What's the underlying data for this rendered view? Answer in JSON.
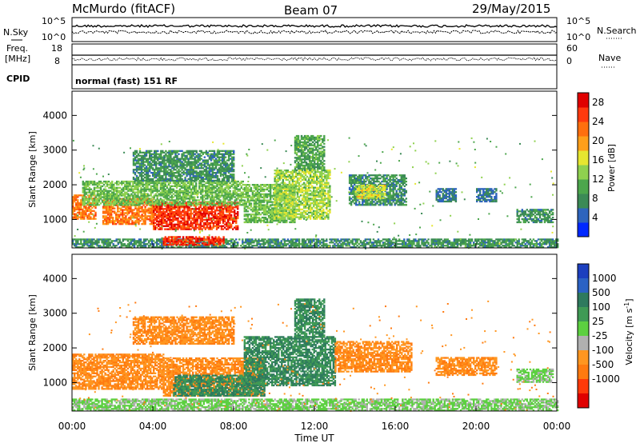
{
  "header": {
    "station": "McMurdo (fitACF)",
    "beam": "Beam 07",
    "date": "29/May/2015",
    "cpid_text": "normal (fast) 151 RF"
  },
  "top_panel": {
    "left_labels": {
      "nsky": "N.Sky",
      "freq_line1": "Freq.",
      "freq_line2": "[MHz]",
      "cpid": "CPID"
    },
    "right_labels": {
      "nsearch": "N.Search",
      "nave": "Nave"
    },
    "nsky_ticks": [
      "10^5",
      "10^0"
    ],
    "nsearch_ticks": [
      "10^5",
      "10^0"
    ],
    "freq_ticks": [
      "18",
      "8"
    ],
    "nave_ticks": [
      "60",
      "0"
    ]
  },
  "colors": {
    "power_scale": [
      "#0028ff",
      "#2e64bd",
      "#3b8a56",
      "#4ca64c",
      "#8fd14f",
      "#e6e630",
      "#ff9f1a",
      "#ff6f0f",
      "#ff3a0f",
      "#e00000"
    ],
    "velocity_scale": [
      "#1c3fbf",
      "#2b62c4",
      "#2e7a5e",
      "#3f9a55",
      "#5cd040",
      "#b0b0b0",
      "#ff9620",
      "#ff7a10",
      "#ff3a0a",
      "#e00000"
    ]
  },
  "chart_data": [
    {
      "type": "heatmap",
      "panel": "power",
      "xlabel": "Time UT",
      "ylabel": "Slant Range [km]",
      "x_ticks": [
        "00:00",
        "04:00",
        "08:00",
        "12:00",
        "16:00",
        "20:00",
        "00:00"
      ],
      "y_ticks": [
        1000,
        2000,
        3000,
        4000
      ],
      "x_range_hours": [
        0,
        24
      ],
      "y_range_km": [
        180,
        4700
      ],
      "colorbar": {
        "label": "Power [dB]",
        "ticks": [
          4,
          8,
          12,
          16,
          20,
          24,
          28
        ],
        "range": [
          0,
          30
        ]
      },
      "regions": [
        {
          "t0": 0.0,
          "t1": 1.2,
          "r0": 1000,
          "r1": 1700,
          "value": 22
        },
        {
          "t0": 1.5,
          "t1": 4.0,
          "r0": 850,
          "r1": 1600,
          "value": 22
        },
        {
          "t0": 4.0,
          "t1": 8.2,
          "r0": 700,
          "r1": 1500,
          "value": 26
        },
        {
          "t0": 0.5,
          "t1": 8.5,
          "r0": 1400,
          "r1": 2100,
          "value": 12
        },
        {
          "t0": 3.0,
          "t1": 8.0,
          "r0": 2100,
          "r1": 3000,
          "value": 8
        },
        {
          "t0": 8.5,
          "t1": 11.0,
          "r0": 900,
          "r1": 2000,
          "value": 12
        },
        {
          "t0": 10.0,
          "t1": 12.8,
          "r0": 1000,
          "r1": 2400,
          "value": 14
        },
        {
          "t0": 11.0,
          "t1": 12.5,
          "r0": 2400,
          "r1": 3400,
          "value": 10
        },
        {
          "t0": 13.7,
          "t1": 16.5,
          "r0": 1400,
          "r1": 2300,
          "value": 8
        },
        {
          "t0": 14.0,
          "t1": 15.5,
          "r0": 1600,
          "r1": 2000,
          "value": 16
        },
        {
          "t0": 18.0,
          "t1": 19.0,
          "r0": 1500,
          "r1": 1900,
          "value": 6
        },
        {
          "t0": 20.0,
          "t1": 21.0,
          "r0": 1500,
          "r1": 1900,
          "value": 6
        },
        {
          "t0": 22.0,
          "t1": 23.8,
          "r0": 900,
          "r1": 1300,
          "value": 8
        },
        {
          "t0": 0.0,
          "t1": 24.0,
          "r0": 180,
          "r1": 450,
          "value": 8
        },
        {
          "t0": 4.5,
          "t1": 7.5,
          "r0": 250,
          "r1": 500,
          "value": 26
        }
      ]
    },
    {
      "type": "heatmap",
      "panel": "velocity",
      "xlabel": "Time UT",
      "ylabel": "Slant Range [km]",
      "x_ticks": [
        "00:00",
        "04:00",
        "08:00",
        "12:00",
        "16:00",
        "20:00",
        "00:00"
      ],
      "y_ticks": [
        1000,
        2000,
        3000,
        4000
      ],
      "x_range_hours": [
        0,
        24
      ],
      "y_range_km": [
        180,
        4700
      ],
      "colorbar": {
        "label": "Velocity [m s",
        "label_sup": "-1",
        "label_end": "]",
        "ticks": [
          "1000",
          "500",
          "100",
          "25",
          "-25",
          "-100",
          "-500",
          "-1000"
        ]
      },
      "regions": [
        {
          "t0": 0.0,
          "t1": 4.5,
          "r0": 800,
          "r1": 1800,
          "value": -100
        },
        {
          "t0": 4.5,
          "t1": 9.5,
          "r0": 600,
          "r1": 1700,
          "value": -100
        },
        {
          "t0": 5.0,
          "t1": 9.5,
          "r0": 600,
          "r1": 1200,
          "value": 100
        },
        {
          "t0": 8.5,
          "t1": 13.0,
          "r0": 900,
          "r1": 2300,
          "value": 100
        },
        {
          "t0": 11.0,
          "t1": 12.5,
          "r0": 2300,
          "r1": 3400,
          "value": 100
        },
        {
          "t0": 13.0,
          "t1": 16.8,
          "r0": 1300,
          "r1": 2200,
          "value": -100
        },
        {
          "t0": 3.0,
          "t1": 8.0,
          "r0": 2100,
          "r1": 2900,
          "value": -100
        },
        {
          "t0": 18.0,
          "t1": 21.0,
          "r0": 1200,
          "r1": 1700,
          "value": -100
        },
        {
          "t0": 22.0,
          "t1": 23.8,
          "r0": 1000,
          "r1": 1400,
          "value": 25
        },
        {
          "t0": 0.0,
          "t1": 24.0,
          "r0": 180,
          "r1": 500,
          "value": 25
        }
      ]
    }
  ]
}
